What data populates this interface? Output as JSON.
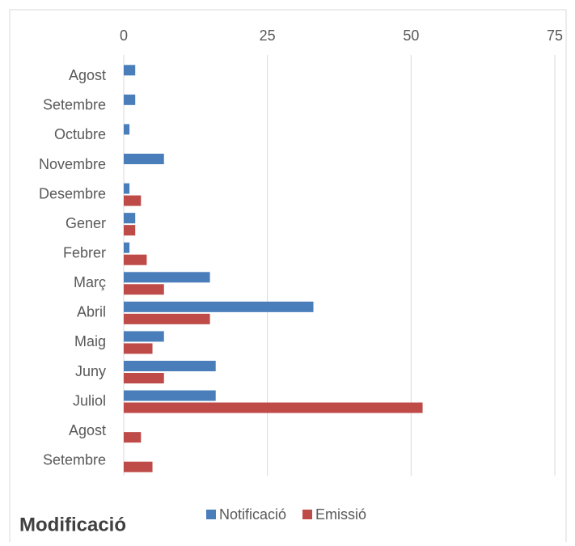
{
  "chart_data": {
    "type": "hbar",
    "title": "Modificació",
    "categories": [
      "Agost",
      "Setembre",
      "Octubre",
      "Novembre",
      "Desembre",
      "Gener",
      "Febrer",
      "Març",
      "Abril",
      "Maig",
      "Juny",
      "Juliol",
      "Agost",
      "Setembre"
    ],
    "series": [
      {
        "name": "Notificació",
        "color": "#4a7ebb",
        "values": [
          2,
          2,
          1,
          7,
          1,
          2,
          1,
          15,
          33,
          7,
          16,
          16,
          0,
          0
        ]
      },
      {
        "name": "Emissió",
        "color": "#be4b48",
        "values": [
          0,
          0,
          0,
          0,
          3,
          2,
          4,
          7,
          15,
          5,
          7,
          52,
          3,
          5
        ]
      }
    ],
    "xlim": [
      0,
      75
    ],
    "xticks": [
      0,
      25,
      50,
      75
    ],
    "grid": true,
    "legend": "bottom"
  }
}
